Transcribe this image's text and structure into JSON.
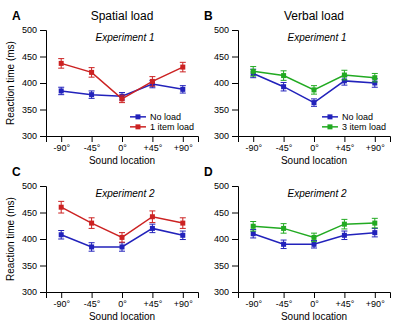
{
  "chart_data": [
    {
      "type": "line",
      "title": "Spatial load",
      "subtitle": "Experiment 1",
      "annotations": [
        "A"
      ],
      "x_label": "Sound location",
      "y_label": "Reaction time (ms)",
      "categories": [
        "-90°",
        "-45°",
        "0°",
        "+45°",
        "+90°"
      ],
      "series": [
        {
          "name": "No load",
          "color": "#2222bb",
          "marker": "square",
          "values": [
            385,
            378,
            375,
            398,
            388
          ],
          "errors": [
            7,
            7,
            7,
            7,
            7
          ]
        },
        {
          "name": "1 item load",
          "color": "#cc2222",
          "marker": "square",
          "values": [
            437,
            420,
            370,
            403,
            430
          ],
          "errors": [
            9,
            9,
            7,
            9,
            9
          ]
        }
      ],
      "ylim": [
        300,
        500
      ],
      "yticks": [
        300,
        350,
        400,
        450,
        500
      ],
      "legend": "lower-right"
    },
    {
      "type": "line",
      "title": "Verbal load",
      "subtitle": "Experiment 1",
      "annotations": [
        "B"
      ],
      "x_label": "Sound location",
      "categories": [
        "-90°",
        "-45°",
        "0°",
        "+45°",
        "+90°"
      ],
      "series": [
        {
          "name": "No load",
          "color": "#2222bb",
          "marker": "square",
          "values": [
            418,
            393,
            363,
            404,
            400
          ],
          "errors": [
            8,
            8,
            7,
            8,
            8
          ]
        },
        {
          "name": "3 item load",
          "color": "#22aa22",
          "marker": "square",
          "values": [
            422,
            414,
            387,
            415,
            410
          ],
          "errors": [
            9,
            9,
            8,
            9,
            8
          ]
        }
      ],
      "ylim": [
        300,
        500
      ],
      "yticks": [
        300,
        350,
        400,
        450,
        500
      ],
      "legend": "lower-right"
    },
    {
      "type": "line",
      "subtitle": "Experiment 2",
      "annotations": [
        "C"
      ],
      "x_label": "Sound location",
      "y_label": "Reaction time (ms)",
      "categories": [
        "-90°",
        "-45°",
        "0°",
        "+45°",
        "+90°"
      ],
      "series": [
        {
          "color": "#2222bb",
          "marker": "square",
          "values": [
            408,
            385,
            385,
            420,
            407
          ],
          "errors": [
            8,
            8,
            8,
            8,
            8
          ]
        },
        {
          "color": "#cc2222",
          "marker": "square",
          "values": [
            460,
            430,
            403,
            442,
            430
          ],
          "errors": [
            11,
            10,
            9,
            11,
            10
          ]
        }
      ],
      "ylim": [
        300,
        500
      ],
      "yticks": [
        300,
        350,
        400,
        450,
        500
      ]
    },
    {
      "type": "line",
      "subtitle": "Experiment 2",
      "annotations": [
        "D"
      ],
      "x_label": "Sound location",
      "categories": [
        "-90°",
        "-45°",
        "0°",
        "+45°",
        "+90°"
      ],
      "series": [
        {
          "color": "#2222bb",
          "marker": "square",
          "values": [
            410,
            390,
            390,
            407,
            412
          ],
          "errors": [
            8,
            8,
            7,
            8,
            8
          ]
        },
        {
          "color": "#22aa22",
          "marker": "square",
          "values": [
            424,
            420,
            403,
            428,
            430
          ],
          "errors": [
            9,
            9,
            8,
            9,
            9
          ]
        }
      ],
      "ylim": [
        300,
        500
      ],
      "yticks": [
        300,
        350,
        400,
        450,
        500
      ]
    }
  ]
}
